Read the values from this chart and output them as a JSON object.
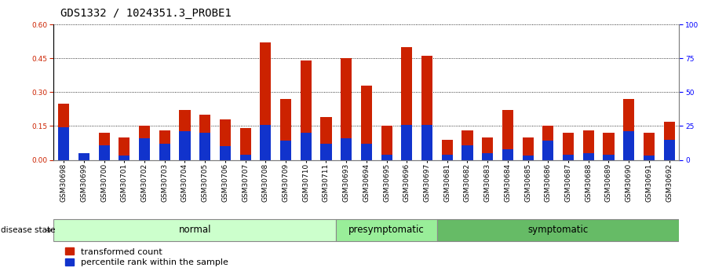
{
  "title": "GDS1332 / 1024351.3_PROBE1",
  "samples": [
    "GSM30698",
    "GSM30699",
    "GSM30700",
    "GSM30701",
    "GSM30702",
    "GSM30703",
    "GSM30704",
    "GSM30705",
    "GSM30706",
    "GSM30707",
    "GSM30708",
    "GSM30709",
    "GSM30710",
    "GSM30711",
    "GSM30693",
    "GSM30694",
    "GSM30695",
    "GSM30696",
    "GSM30697",
    "GSM30681",
    "GSM30682",
    "GSM30683",
    "GSM30684",
    "GSM30685",
    "GSM30686",
    "GSM30687",
    "GSM30688",
    "GSM30689",
    "GSM30690",
    "GSM30691",
    "GSM30692"
  ],
  "transformed_count": [
    0.25,
    0.02,
    0.12,
    0.1,
    0.15,
    0.13,
    0.22,
    0.2,
    0.18,
    0.14,
    0.52,
    0.27,
    0.44,
    0.19,
    0.45,
    0.33,
    0.15,
    0.5,
    0.46,
    0.09,
    0.13,
    0.1,
    0.22,
    0.1,
    0.15,
    0.12,
    0.13,
    0.12,
    0.27,
    0.12,
    0.17
  ],
  "percentile_rank_pct": [
    24.0,
    5.0,
    11.0,
    3.0,
    16.0,
    12.0,
    21.0,
    20.0,
    10.0,
    4.0,
    26.0,
    14.0,
    20.0,
    12.0,
    16.0,
    12.0,
    4.0,
    26.0,
    26.0,
    4.0,
    11.0,
    5.0,
    8.0,
    3.0,
    14.0,
    4.0,
    5.0,
    4.0,
    21.0,
    3.0,
    15.0
  ],
  "groups": [
    {
      "label": "normal",
      "start": 0,
      "end": 13,
      "color": "#ccffcc"
    },
    {
      "label": "presymptomatic",
      "start": 14,
      "end": 18,
      "color": "#99ee99"
    },
    {
      "label": "symptomatic",
      "start": 19,
      "end": 30,
      "color": "#66bb66"
    }
  ],
  "ylim_left": [
    0,
    0.6
  ],
  "ylim_right": [
    0,
    100
  ],
  "yticks_left": [
    0,
    0.15,
    0.3,
    0.45,
    0.6
  ],
  "yticks_right": [
    0,
    25,
    50,
    75,
    100
  ],
  "bar_color_red": "#cc2200",
  "bar_color_blue": "#1133cc",
  "bar_width": 0.55,
  "label_red": "transformed count",
  "label_blue": "percentile rank within the sample",
  "disease_state_label": "disease state",
  "title_fontsize": 10,
  "tick_fontsize": 6.5,
  "group_fontsize": 8.5,
  "legend_fontsize": 8
}
